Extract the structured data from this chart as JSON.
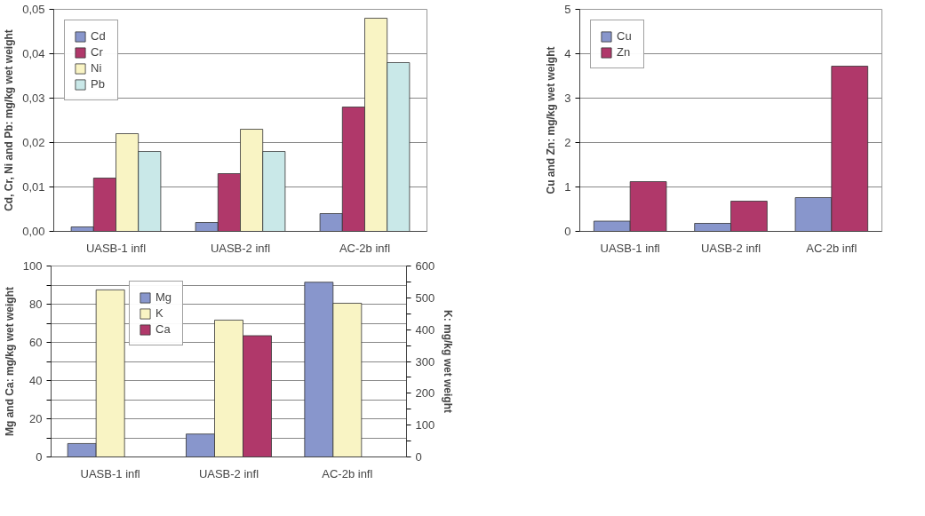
{
  "chart_data": [
    {
      "type": "bar",
      "ylabel": "Cd, Cr, Ni and Pb: mg/kg wet weight",
      "categories": [
        "UASB-1 infl",
        "UASB-2 infl",
        "AC-2b infl"
      ],
      "series": [
        {
          "name": "Cd",
          "color": "#8896cc",
          "values": [
            0.001,
            0.002,
            0.004
          ]
        },
        {
          "name": "Cr",
          "color": "#b0386a",
          "values": [
            0.012,
            0.013,
            0.028
          ]
        },
        {
          "name": "Ni",
          "color": "#f9f4c4",
          "values": [
            0.022,
            0.023,
            0.048
          ]
        },
        {
          "name": "Pb",
          "color": "#c9e8e8",
          "values": [
            0.018,
            0.018,
            0.038
          ]
        }
      ],
      "ylim": [
        0,
        0.05
      ],
      "yticks": [
        {
          "value": 0,
          "label": "0,00"
        },
        {
          "value": 0.01,
          "label": "0,01"
        },
        {
          "value": 0.02,
          "label": "0,02"
        },
        {
          "value": 0.03,
          "label": "0,03"
        },
        {
          "value": 0.04,
          "label": "0,04"
        },
        {
          "value": 0.05,
          "label": "0,05"
        }
      ],
      "grid": "y",
      "legend": "top left"
    },
    {
      "type": "bar",
      "ylabel": "Cu and Zn: mg/kg wet weight",
      "categories": [
        "UASB-1 infl",
        "UASB-2 infl",
        "AC-2b infl"
      ],
      "series": [
        {
          "name": "Cu",
          "color": "#8896cc",
          "values": [
            0.23,
            0.18,
            0.76
          ]
        },
        {
          "name": "Zn",
          "color": "#b0386a",
          "values": [
            1.12,
            0.68,
            3.72
          ]
        }
      ],
      "ylim": [
        0,
        5
      ],
      "yticks": [
        0,
        1,
        2,
        3,
        4,
        5
      ],
      "grid": "y",
      "legend": "top left"
    },
    {
      "type": "bar",
      "ylabel": "Mg and Ca: mg/kg wet weight",
      "y2label": "K: mg/kg wet weight",
      "categories": [
        "UASB-1 infl",
        "UASB-2 infl",
        "AC-2b infl"
      ],
      "series": [
        {
          "name": "Mg",
          "color": "#8896cc",
          "values": [
            7,
            12,
            91.5
          ]
        },
        {
          "name": "K",
          "color": "#f9f4c4",
          "values": [
            525,
            430,
            483
          ],
          "axis": "y2"
        },
        {
          "name": "Ca",
          "color": "#b0386a",
          "values": [
            null,
            63.5,
            null
          ]
        }
      ],
      "ylim": [
        0,
        100
      ],
      "yticks": [
        0,
        {
          "value": 10,
          "label": null
        },
        20,
        {
          "value": 30,
          "label": null
        },
        40,
        {
          "value": 50,
          "label": null
        },
        60,
        {
          "value": 70,
          "label": null
        },
        80,
        {
          "value": 90,
          "label": null
        },
        100
      ],
      "y2lim": [
        0,
        600
      ],
      "y2ticks": [
        0,
        {
          "value": 50,
          "label": null
        },
        100,
        {
          "value": 150,
          "label": null
        },
        200,
        {
          "value": 250,
          "label": null
        },
        300,
        {
          "value": 350,
          "label": null
        },
        400,
        {
          "value": 450,
          "label": null
        },
        500,
        {
          "value": 550,
          "label": null
        },
        600
      ],
      "grid": "y",
      "legend": "top"
    }
  ]
}
